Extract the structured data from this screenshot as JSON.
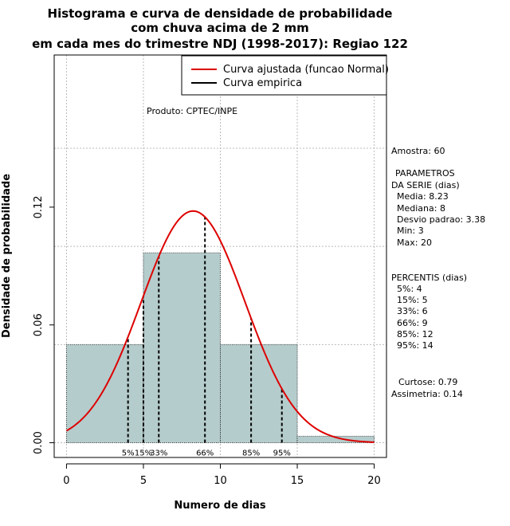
{
  "chart_data": {
    "type": "histogram",
    "title_lines": [
      "Histograma e curva de densidade de probabilidade",
      "com chuva acima de 2 mm",
      "em cada mes do trimestre NDJ (1998-2017): Regiao 122"
    ],
    "xlabel": "Numero de dias",
    "ylabel": "Densidade de probabilidade",
    "xlim": [
      -0.8,
      20.8
    ],
    "ylim": [
      -0.0075,
      0.1975
    ],
    "x_ticks": [
      0,
      5,
      10,
      15,
      20
    ],
    "y_ticks": [
      0.0,
      0.06,
      0.12
    ],
    "y_tick_labels": [
      "0.00",
      "0.06",
      "0.12"
    ],
    "x_gridlines": [
      0,
      5,
      10,
      15,
      20
    ],
    "y_gridlines": [
      0.0,
      0.05,
      0.1,
      0.15
    ],
    "bins": [
      {
        "from": 0,
        "to": 5,
        "density": 0.05
      },
      {
        "from": 5,
        "to": 10,
        "density": 0.0967
      },
      {
        "from": 10,
        "to": 15,
        "density": 0.05
      },
      {
        "from": 15,
        "to": 20,
        "density": 0.0033
      }
    ],
    "bar_color": "#b5cccc",
    "normal_fit": {
      "mean": 8.23,
      "sd": 3.38,
      "color": "#dd0000"
    },
    "percentile_markers": [
      {
        "x": 4,
        "label": "5%"
      },
      {
        "x": 5,
        "label": "15%"
      },
      {
        "x": 6,
        "label": "33%"
      },
      {
        "x": 9,
        "label": "66%"
      },
      {
        "x": 12,
        "label": "85%"
      },
      {
        "x": 14,
        "label": "95%"
      }
    ],
    "legend": [
      {
        "label": "Curva ajustada (funcao Normal)",
        "color": "#dd0000"
      },
      {
        "label": "Curva empirica",
        "color": "#000000"
      }
    ],
    "legend_position": "top-right",
    "source_note": "Produto: CPTEC/INPE"
  },
  "stats": {
    "amostra": "Amostra: 60",
    "param_header_1": "PARAMETROS",
    "param_header_2": "DA SERIE (dias)",
    "media": "Media: 8.23",
    "mediana": "Mediana: 8",
    "desvio": "Desvio padrao: 3.38",
    "min": "Min: 3",
    "max": "Max: 20",
    "percentis_header": "PERCENTIS (dias)",
    "p5": "5%: 4",
    "p15": "15%: 5",
    "p33": "33%: 6",
    "p66": "66%: 9",
    "p85": "85%: 12",
    "p95": "95%: 14",
    "curtose": "Curtose: 0.79",
    "assimetria": "Assimetria: 0.14"
  }
}
